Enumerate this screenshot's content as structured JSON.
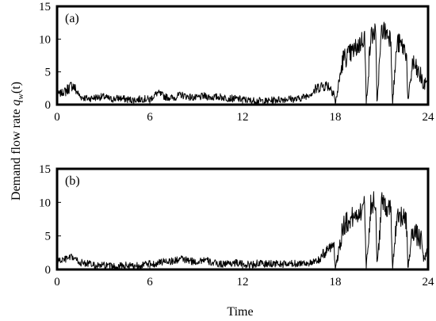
{
  "chart_data": [
    {
      "type": "line",
      "panel_label": "(a)",
      "xlim": [
        0,
        24
      ],
      "ylim": [
        0,
        15
      ],
      "xticks": [
        "0",
        "6",
        "12",
        "18",
        "24"
      ],
      "yticks": [
        "0",
        "5",
        "10",
        "15"
      ],
      "grid": false,
      "series": [
        {
          "x": [
            0,
            0.5,
            1,
            1.5,
            2,
            2.5,
            3,
            3.5,
            4,
            4.5,
            5,
            5.5,
            6,
            6.5,
            7,
            7.5,
            8,
            8.5,
            9,
            9.5,
            10,
            10.5,
            11,
            11.5,
            12,
            12.5,
            13,
            13.5,
            14,
            14.5,
            15,
            15.5,
            16,
            16.5,
            17,
            17.5,
            17.9,
            18,
            18.5,
            19,
            19.5,
            19.9,
            20,
            20.3,
            20.6,
            20.7,
            21,
            21.3,
            21.6,
            21.7,
            22,
            22.3,
            22.6,
            22.7,
            23,
            23.3,
            23.6,
            23.7,
            24
          ],
          "y": [
            1.5,
            2.0,
            3.0,
            1.2,
            0.9,
            1.1,
            1.2,
            0.8,
            1.0,
            0.8,
            0.7,
            0.9,
            0.8,
            1.8,
            1.2,
            1.0,
            1.5,
            1.2,
            1.0,
            1.3,
            1.1,
            1.2,
            1.0,
            0.9,
            0.8,
            0.6,
            0.6,
            0.5,
            0.7,
            0.8,
            0.9,
            0.8,
            1.2,
            1.8,
            2.8,
            3.0,
            2.0,
            0.1,
            7.0,
            7.8,
            9.0,
            10.5,
            0.2,
            10.5,
            11.0,
            0.2,
            11.5,
            11.0,
            10.2,
            0.2,
            9.5,
            9.0,
            8.0,
            0.2,
            6.5,
            5.0,
            4.0,
            2.5,
            4.5
          ]
        }
      ]
    },
    {
      "type": "line",
      "panel_label": "(b)",
      "xlim": [
        0,
        24
      ],
      "ylim": [
        0,
        15
      ],
      "xticks": [
        "0",
        "6",
        "12",
        "18",
        "24"
      ],
      "yticks": [
        "0",
        "5",
        "10",
        "15"
      ],
      "grid": false,
      "series": [
        {
          "x": [
            0,
            0.5,
            1,
            1.5,
            2,
            2.5,
            3,
            3.5,
            4,
            4.5,
            5,
            5.5,
            6,
            6.5,
            7,
            7.5,
            8,
            8.5,
            9,
            9.5,
            10,
            10.5,
            11,
            11.5,
            12,
            12.5,
            13,
            13.5,
            14,
            14.5,
            15,
            15.5,
            16,
            16.5,
            17,
            17.5,
            17.9,
            18,
            18.5,
            19,
            19.5,
            19.9,
            20,
            20.3,
            20.6,
            20.7,
            21,
            21.3,
            21.6,
            21.7,
            22,
            22.3,
            22.6,
            22.7,
            23,
            23.3,
            23.6,
            23.7,
            24
          ],
          "y": [
            1.2,
            1.5,
            1.8,
            1.0,
            0.9,
            0.5,
            0.6,
            0.4,
            0.5,
            0.6,
            0.6,
            0.7,
            0.8,
            0.9,
            1.3,
            1.2,
            1.6,
            1.3,
            1.1,
            1.5,
            1.0,
            0.8,
            0.9,
            1.0,
            0.8,
            0.7,
            0.9,
            0.8,
            0.9,
            0.8,
            0.8,
            0.9,
            1.0,
            0.9,
            1.5,
            3.0,
            4.0,
            0.1,
            6.5,
            7.5,
            8.5,
            9.5,
            0.2,
            9.8,
            10.2,
            0.2,
            10.0,
            9.5,
            9.0,
            0.2,
            8.5,
            7.8,
            7.0,
            0.2,
            6.0,
            5.0,
            4.0,
            1.5,
            2.5
          ]
        }
      ]
    }
  ],
  "shared": {
    "xlabel": "Time",
    "ylabel_main": "Demand flow rate ",
    "ylabel_q": "q",
    "ylabel_sub": "w",
    "ylabel_tail": "(t)"
  }
}
